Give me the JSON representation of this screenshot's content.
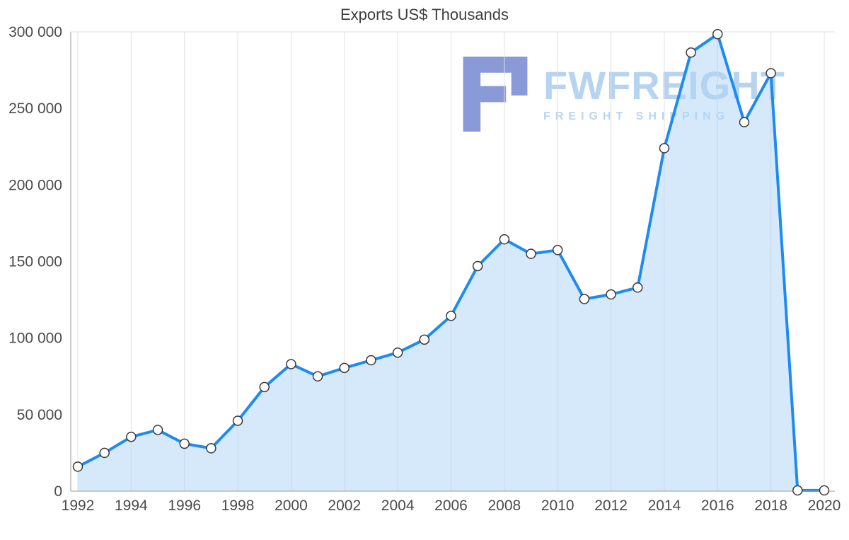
{
  "page": {
    "background": "#ffffff"
  },
  "chart_data": {
    "type": "area",
    "title": "Exports US$ Thousands",
    "xlabel": "",
    "ylabel": "",
    "x": [
      1992,
      1993,
      1994,
      1995,
      1996,
      1997,
      1998,
      1999,
      2000,
      2001,
      2002,
      2003,
      2004,
      2005,
      2006,
      2007,
      2008,
      2009,
      2010,
      2011,
      2012,
      2013,
      2014,
      2015,
      2016,
      2017,
      2018,
      2019,
      2020
    ],
    "series": [
      {
        "name": "Exports US$ Thousands",
        "values": [
          16000,
          25000,
          35500,
          40000,
          31000,
          28000,
          46000,
          68000,
          83000,
          75000,
          80500,
          85500,
          90500,
          99000,
          114500,
          147000,
          164500,
          155000,
          157500,
          125500,
          128500,
          133000,
          224000,
          286500,
          298500,
          241000,
          273000,
          500,
          500
        ]
      }
    ],
    "ylim": [
      0,
      300000
    ],
    "y_ticks": {
      "values": [
        0,
        50000,
        100000,
        150000,
        200000,
        250000,
        300000
      ],
      "labels": [
        "0",
        "50 000",
        "100 000",
        "150 000",
        "200 000",
        "250 000",
        "300 000"
      ]
    },
    "x_tick_interval": 2,
    "grid": "vertical",
    "legend": "none",
    "markers": true,
    "colors": {
      "line": "#1e8bf0",
      "area": "#aed3f6",
      "area_opacity": 0.5,
      "marker_fill": "#fdfdfd",
      "marker_stroke": "#3a3a3a",
      "grid": "#e0e0e0",
      "axis": "#9b9b9b",
      "tick_text": "#4b4b4b",
      "title_text": "#3e3e3e"
    }
  },
  "watermark": {
    "brand": "FWFREIGHT",
    "tagline": "FREIGHT SHIPPING",
    "brand_color": "#b6d3f0",
    "tagline_color": "#b9d6f0",
    "logo_color": "#8a9ad9",
    "logo_icon": "fwfreight-logo"
  }
}
